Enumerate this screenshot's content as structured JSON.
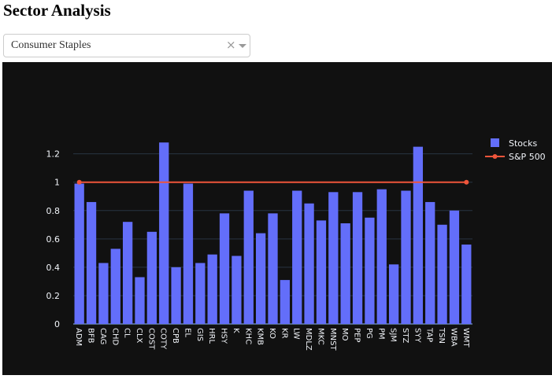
{
  "page": {
    "title": "Sector Analysis"
  },
  "sector_select": {
    "selected": "Consumer Staples",
    "clear_glyph": "×"
  },
  "colors": {
    "plot_bg": "#111111",
    "bar": "#636efa",
    "line": "#ef553b",
    "text": "#f2f5fa",
    "grid": "#283442"
  },
  "chart_data": {
    "type": "bar",
    "categories": [
      "ADM",
      "BFB",
      "CAG",
      "CHD",
      "CL",
      "CLX",
      "COST",
      "COTY",
      "CPB",
      "EL",
      "GIS",
      "HRL",
      "HSY",
      "K",
      "KHC",
      "KMB",
      "KO",
      "KR",
      "LW",
      "MDLZ",
      "MKC",
      "MNST",
      "MO",
      "PEP",
      "PG",
      "PM",
      "SJM",
      "STZ",
      "SYY",
      "TAP",
      "TSN",
      "WBA",
      "WMT"
    ],
    "series": [
      {
        "name": "Stocks",
        "type": "bar",
        "values": [
          0.99,
          0.86,
          0.43,
          0.53,
          0.72,
          0.33,
          0.65,
          1.28,
          0.4,
          0.99,
          0.43,
          0.49,
          0.78,
          0.48,
          0.94,
          0.64,
          0.78,
          0.31,
          0.94,
          0.85,
          0.73,
          0.93,
          0.71,
          0.93,
          0.75,
          0.95,
          0.42,
          0.94,
          1.25,
          0.86,
          0.7,
          0.8,
          0.56
        ]
      },
      {
        "name": "S&P 500",
        "type": "line",
        "x": [
          "ADM",
          "WMT"
        ],
        "values": [
          1,
          1
        ]
      }
    ],
    "ylim": [
      0,
      1.32
    ],
    "yticks": [
      0,
      0.2,
      0.4,
      0.6,
      0.8,
      1,
      1.2
    ],
    "ytick_labels": [
      "0",
      "0.2",
      "0.4",
      "0.6",
      "0.8",
      "1",
      "1.2"
    ],
    "grid": true,
    "legend_position": "top-right"
  }
}
